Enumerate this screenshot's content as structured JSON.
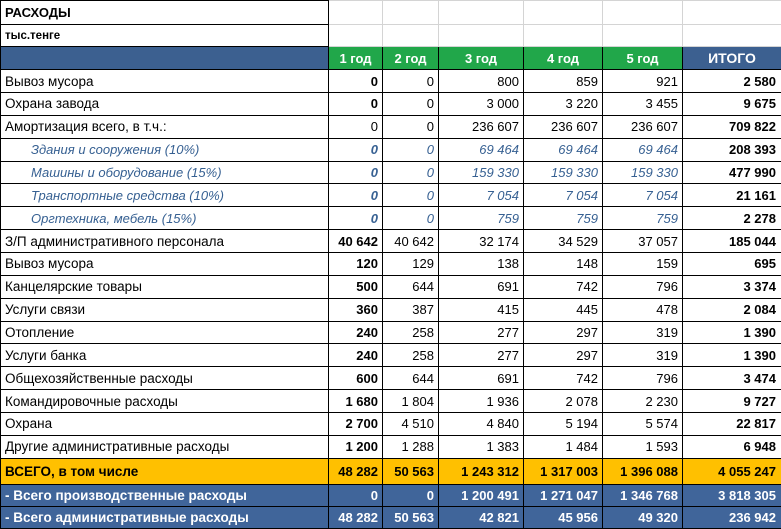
{
  "title": "РАСХОДЫ",
  "subtitle": "тыс.тенге",
  "columns": [
    "1 год",
    "2 год",
    "3 год",
    "4 год",
    "5 год",
    "ИТОГО"
  ],
  "rows": [
    {
      "label": "Вывоз мусора",
      "style": "normal",
      "values": [
        "0",
        "0",
        "800",
        "859",
        "921",
        "2 580"
      ]
    },
    {
      "label": "Охрана завода",
      "style": "normal",
      "values": [
        "0",
        "0",
        "3 000",
        "3 220",
        "3 455",
        "9 675"
      ]
    },
    {
      "label": "Амортизация всего, в т.ч.:",
      "style": "plain",
      "values": [
        "0",
        "0",
        "236 607",
        "236 607",
        "236 607",
        "709 822"
      ]
    },
    {
      "label": "Здания и сооружения (10%)",
      "style": "sub",
      "values": [
        "0",
        "0",
        "69 464",
        "69 464",
        "69 464",
        "208 393"
      ]
    },
    {
      "label": "Машины и оборудование (15%)",
      "style": "sub",
      "values": [
        "0",
        "0",
        "159 330",
        "159 330",
        "159 330",
        "477 990"
      ]
    },
    {
      "label": "Транспортные средства (10%)",
      "style": "sub",
      "values": [
        "0",
        "0",
        "7 054",
        "7 054",
        "7 054",
        "21 161"
      ]
    },
    {
      "label": "Оргтехника, мебель (15%)",
      "style": "sub",
      "values": [
        "0",
        "0",
        "759",
        "759",
        "759",
        "2 278"
      ]
    },
    {
      "label": "З/П административного персонала",
      "style": "normal",
      "values": [
        "40 642",
        "40 642",
        "32 174",
        "34 529",
        "37 057",
        "185 044"
      ]
    },
    {
      "label": "Вывоз мусора",
      "style": "normal",
      "values": [
        "120",
        "129",
        "138",
        "148",
        "159",
        "695"
      ]
    },
    {
      "label": "Канцелярские товары",
      "style": "normal",
      "values": [
        "500",
        "644",
        "691",
        "742",
        "796",
        "3 374"
      ]
    },
    {
      "label": "Услуги связи",
      "style": "normal",
      "values": [
        "360",
        "387",
        "415",
        "445",
        "478",
        "2 084"
      ]
    },
    {
      "label": "Отопление",
      "style": "normal",
      "values": [
        "240",
        "258",
        "277",
        "297",
        "319",
        "1 390"
      ]
    },
    {
      "label": "Услуги банка",
      "style": "normal",
      "values": [
        "240",
        "258",
        "277",
        "297",
        "319",
        "1 390"
      ]
    },
    {
      "label": "Общехозяйственные расходы",
      "style": "normal",
      "values": [
        "600",
        "644",
        "691",
        "742",
        "796",
        "3 474"
      ]
    },
    {
      "label": "Командировочные расходы",
      "style": "normal",
      "values": [
        "1 680",
        "1 804",
        "1 936",
        "2 078",
        "2 230",
        "9 727"
      ]
    },
    {
      "label": "Охрана",
      "style": "normal",
      "values": [
        "2 700",
        "4 510",
        "4 840",
        "5 194",
        "5 574",
        "22 817"
      ]
    },
    {
      "label": "Другие административные расходы",
      "style": "normal",
      "values": [
        "1 200",
        "1 288",
        "1 383",
        "1 484",
        "1 593",
        "6 948"
      ]
    },
    {
      "label": "ВСЕГО, в том числе",
      "style": "total",
      "values": [
        "48 282",
        "50 563",
        "1 243 312",
        "1 317 003",
        "1 396 088",
        "4 055 247"
      ]
    },
    {
      "label": " - Всего производственные расходы",
      "style": "footer",
      "values": [
        "0",
        "0",
        "1 200 491",
        "1 271 047",
        "1 346 768",
        "3 818 305"
      ]
    },
    {
      "label": " - Всего административные расходы",
      "style": "footer",
      "values": [
        "48 282",
        "50 563",
        "42 821",
        "45 956",
        "49 320",
        "236 942"
      ]
    }
  ],
  "colors": {
    "header_blue": "#3C6090",
    "footer_blue": "#40659A",
    "green": "#21A74A",
    "gold": "#FFC000",
    "sub_text_blue": "#366092",
    "gridline_gray": "#D4D4D4"
  }
}
